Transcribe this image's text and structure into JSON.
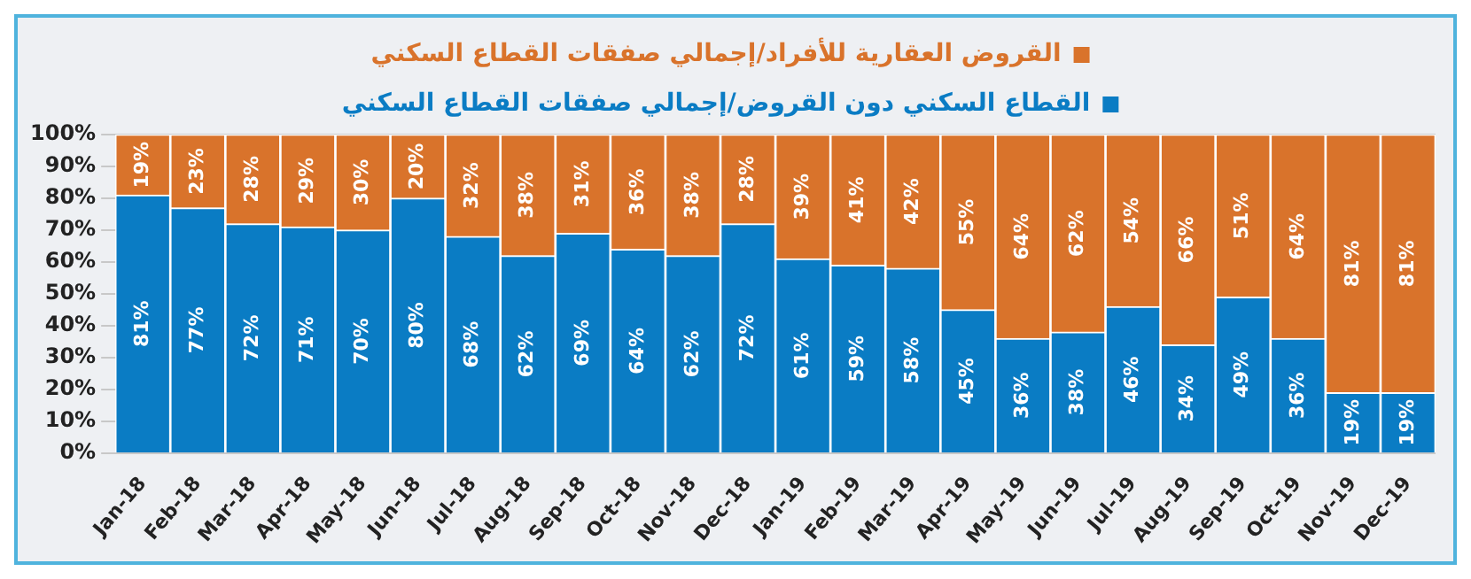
{
  "chart_data": {
    "type": "bar",
    "stacked": true,
    "legend": "top",
    "grid": "y",
    "categories": [
      "Jan-18",
      "Feb-18",
      "Mar-18",
      "Apr-18",
      "May-18",
      "Jun-18",
      "Jul-18",
      "Aug-18",
      "Sep-18",
      "Oct-18",
      "Nov-18",
      "Dec-18",
      "Jan-19",
      "Feb-19",
      "Mar-19",
      "Apr-19",
      "May-19",
      "Jun-19",
      "Jul-19",
      "Aug-19",
      "Sep-19",
      "Oct-19",
      "Nov-19",
      "Dec-19"
    ],
    "ylim": [
      0,
      100
    ],
    "yticks": [
      {
        "value": 0,
        "label": "0%"
      },
      {
        "value": 10,
        "label": "10%"
      },
      {
        "value": 20,
        "label": "20%"
      },
      {
        "value": 30,
        "label": "30%"
      },
      {
        "value": 40,
        "label": "40%"
      },
      {
        "value": 50,
        "label": "50%"
      },
      {
        "value": 60,
        "label": "60%"
      },
      {
        "value": 70,
        "label": "70%"
      },
      {
        "value": 80,
        "label": "80%"
      },
      {
        "value": 90,
        "label": "90%"
      },
      {
        "value": 100,
        "label": "100%"
      }
    ],
    "series": [
      {
        "name": "القطاع السكني دون القروض/إجمالي صفقات القطاع السكني",
        "color": "#0a7cc4",
        "values": [
          81,
          77,
          72,
          71,
          70,
          80,
          68,
          62,
          69,
          64,
          62,
          72,
          61,
          59,
          58,
          45,
          36,
          38,
          46,
          34,
          49,
          36,
          19,
          19
        ],
        "value_labels": [
          "81%",
          "77%",
          "72%",
          "71%",
          "70%",
          "80%",
          "68%",
          "62%",
          "69%",
          "64%",
          "62%",
          "72%",
          "61%",
          "59%",
          "58%",
          "45%",
          "36%",
          "38%",
          "46%",
          "34%",
          "49%",
          "36%",
          "19%",
          "19%"
        ]
      },
      {
        "name": "القروض العقارية للأفراد/إجمالي صفقات القطاع السكني",
        "color": "#d9732b",
        "values": [
          19,
          23,
          28,
          29,
          30,
          20,
          32,
          38,
          31,
          36,
          38,
          28,
          39,
          41,
          42,
          55,
          64,
          62,
          54,
          66,
          51,
          64,
          81,
          81
        ],
        "value_labels": [
          "19%",
          "23%",
          "28%",
          "29%",
          "30%",
          "20%",
          "32%",
          "38%",
          "31%",
          "36%",
          "38%",
          "28%",
          "39%",
          "41%",
          "42%",
          "55%",
          "64%",
          "62%",
          "54%",
          "66%",
          "51%",
          "64%",
          "81%",
          "81%"
        ]
      }
    ]
  }
}
